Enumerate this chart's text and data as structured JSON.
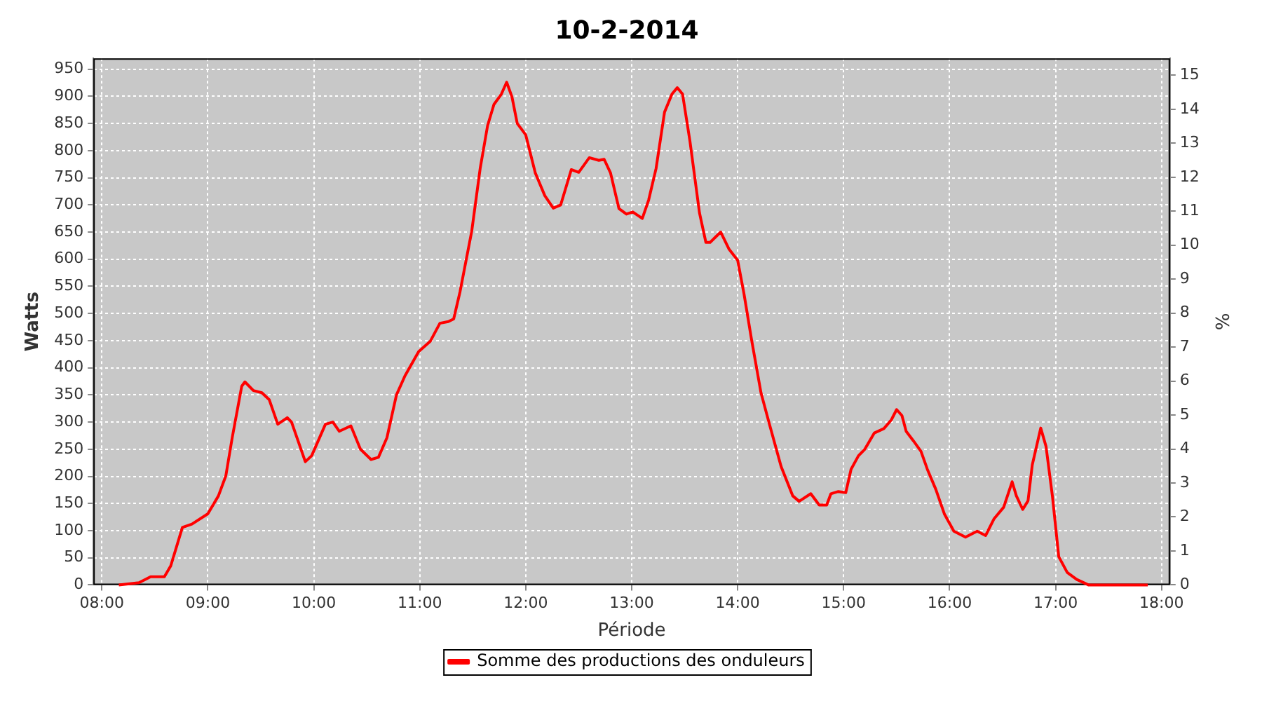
{
  "chart_data": {
    "type": "line",
    "title": "10-2-2014",
    "xlabel": "Période",
    "ylabel": "Watts",
    "y2label": "%",
    "xlim": [
      7.92,
      18.08
    ],
    "xticks": [
      {
        "value": 8,
        "label": "08:00"
      },
      {
        "value": 9,
        "label": "09:00"
      },
      {
        "value": 10,
        "label": "10:00"
      },
      {
        "value": 11,
        "label": "11:00"
      },
      {
        "value": 12,
        "label": "12:00"
      },
      {
        "value": 13,
        "label": "13:00"
      },
      {
        "value": 14,
        "label": "14:00"
      },
      {
        "value": 15,
        "label": "15:00"
      },
      {
        "value": 16,
        "label": "16:00"
      },
      {
        "value": 17,
        "label": "17:00"
      },
      {
        "value": 18,
        "label": "18:00"
      }
    ],
    "ylim": [
      0,
      970
    ],
    "yticks": [
      0,
      50,
      100,
      150,
      200,
      250,
      300,
      350,
      400,
      450,
      500,
      550,
      600,
      650,
      700,
      750,
      800,
      850,
      900,
      950
    ],
    "y2lim": [
      0,
      15.5
    ],
    "y2ticks": [
      0,
      1,
      2,
      3,
      4,
      5,
      6,
      7,
      8,
      9,
      10,
      11,
      12,
      13,
      14,
      15
    ],
    "grid": true,
    "legend": "bottom",
    "marker": "none",
    "line_style": "solid",
    "series": [
      {
        "name": "Somme des productions des onduleurs",
        "color": "#ff0000",
        "x": [
          8.16,
          8.35,
          8.46,
          8.59,
          8.65,
          8.76,
          8.85,
          9.0,
          9.1,
          9.17,
          9.23,
          9.32,
          9.35,
          9.43,
          9.51,
          9.58,
          9.66,
          9.75,
          9.79,
          9.92,
          9.98,
          10.11,
          10.18,
          10.24,
          10.35,
          10.44,
          10.54,
          10.61,
          10.69,
          10.78,
          10.86,
          10.99,
          11.1,
          11.19,
          11.27,
          11.32,
          11.38,
          11.49,
          11.57,
          11.64,
          11.7,
          11.77,
          11.82,
          11.87,
          11.92,
          12.0,
          12.09,
          12.18,
          12.26,
          12.33,
          12.43,
          12.5,
          12.6,
          12.69,
          12.74,
          12.8,
          12.88,
          12.95,
          13.01,
          13.1,
          13.16,
          13.23,
          13.31,
          13.38,
          13.43,
          13.48,
          13.55,
          13.64,
          13.7,
          13.74,
          13.84,
          13.92,
          14.0,
          14.06,
          14.13,
          14.22,
          14.3,
          14.41,
          14.52,
          14.58,
          14.69,
          14.77,
          14.84,
          14.88,
          14.95,
          15.02,
          15.07,
          15.14,
          15.2,
          15.29,
          15.38,
          15.45,
          15.5,
          15.55,
          15.59,
          15.66,
          15.73,
          15.79,
          15.87,
          15.95,
          16.04,
          16.15,
          16.26,
          16.34,
          16.42,
          16.51,
          16.59,
          16.63,
          16.69,
          16.74,
          16.78,
          16.86,
          16.91,
          16.97,
          17.03,
          17.11,
          17.2,
          17.31,
          17.87
        ],
        "values": [
          0,
          4,
          15,
          15,
          35,
          106,
          112,
          131,
          164,
          201,
          271,
          366,
          374,
          358,
          354,
          341,
          296,
          308,
          300,
          227,
          238,
          296,
          300,
          283,
          293,
          250,
          231,
          235,
          271,
          350,
          385,
          430,
          449,
          482,
          485,
          490,
          540,
          651,
          767,
          846,
          885,
          904,
          926,
          899,
          850,
          829,
          759,
          717,
          694,
          700,
          765,
          760,
          787,
          782,
          784,
          759,
          693,
          683,
          687,
          675,
          709,
          767,
          871,
          904,
          916,
          904,
          817,
          685,
          631,
          631,
          650,
          618,
          598,
          536,
          453,
          354,
          296,
          218,
          164,
          154,
          168,
          147,
          147,
          168,
          172,
          170,
          213,
          238,
          250,
          280,
          288,
          304,
          323,
          312,
          283,
          265,
          246,
          213,
          176,
          131,
          99,
          88,
          99,
          91,
          122,
          143,
          190,
          164,
          139,
          155,
          221,
          289,
          255,
          164,
          52,
          23,
          10,
          0,
          0
        ]
      }
    ]
  }
}
